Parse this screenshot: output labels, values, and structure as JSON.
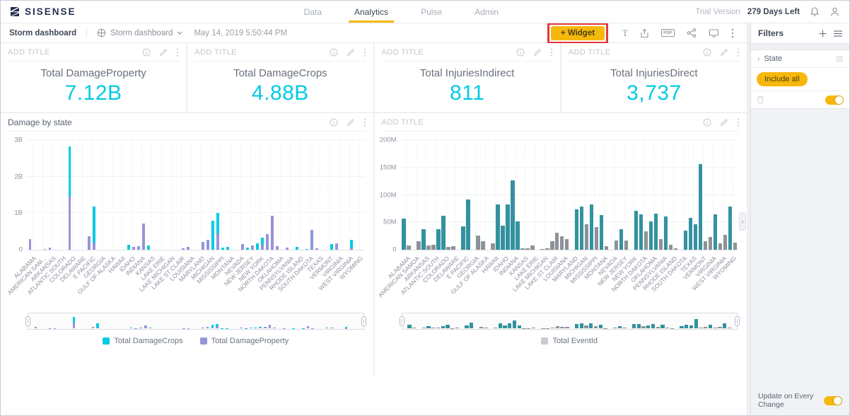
{
  "theme": {
    "accent_yellow": "#f7b80d",
    "highlight_red": "#e23a38",
    "kpi_cyan": "#00cbe4"
  },
  "navbar": {
    "logo": "SISENSE",
    "tabs": [
      {
        "label": "Data",
        "active": false
      },
      {
        "label": "Analytics",
        "active": true
      },
      {
        "label": "Pulse",
        "active": false
      },
      {
        "label": "Admin",
        "active": false
      }
    ],
    "trial_label": "Trial Version",
    "trial_days": "279 Days Left"
  },
  "toolbar": {
    "breadcrumb": "Storm dashboard",
    "selector_label": "Storm dashboard",
    "timestamp": "May 14, 2019 5:50:44 PM",
    "widget_label": "+ Widget",
    "text_icon_label": "T",
    "pdf_icon_label": "PDF"
  },
  "filters": {
    "title": "Filters",
    "items": [
      {
        "name": "State",
        "value": "Include all"
      }
    ],
    "update_label": "Update on Every Change"
  },
  "kpis": [
    {
      "header": "ADD TITLE",
      "label": "Total DamageProperty",
      "value": "7.12B"
    },
    {
      "header": "ADD TITLE",
      "label": "Total DamageCrops",
      "value": "4.88B"
    },
    {
      "header": "ADD TITLE",
      "label": "Total InjuriesIndirect",
      "value": "811"
    },
    {
      "header": "ADD TITLE",
      "label": "Total InjuriesDirect",
      "value": "3,737"
    }
  ],
  "chart_data": [
    {
      "type": "bar",
      "stacked": true,
      "title": "Damage by state",
      "placeholder_title": "",
      "unit": "B",
      "ylim": [
        0,
        3
      ],
      "slots": 68,
      "bar_width": 0.55,
      "grid": true,
      "legend_position": "bottom",
      "y_ticks": [
        {
          "label": "3B",
          "value": 3
        },
        {
          "label": "2B",
          "value": 2
        },
        {
          "label": "1B",
          "value": 1
        },
        {
          "label": "0",
          "value": 0
        }
      ],
      "categories": [
        "ALABAMA",
        "AMERICAN SAM...",
        "ARKANSAS",
        "ATLANTIC SOUTH",
        "COLORADO",
        "DELAWARE",
        "E PACIFIC",
        "GEORGIA",
        "GULF OF ALASKA",
        "HAWAII",
        "IDAHO",
        "INDIANA",
        "KANSAS",
        "LAKE ERIE",
        "LAKE MICHIGAN",
        "LAKE ST CLAIR",
        "LOUISIANA",
        "MARYLAND",
        "MICHIGAN",
        "MISSISSIPPI",
        "MONTANA",
        "NEVADA",
        "NEW JERSEY",
        "NEW YORK",
        "NORTH DAKOTA",
        "OKLAHOMA",
        "PENNSYLVANIA",
        "RHODE ISLAND",
        "SOUTH DAKOTA",
        "TEXAS",
        "VERMONT",
        "VIRGINIA",
        "WEST VIRGINIA",
        "WYOMING"
      ],
      "series": [
        {
          "name": "Total DamageProperty",
          "color": "#9595d8",
          "values": [
            0.3,
            0,
            0,
            0.02,
            0.06,
            0,
            0,
            0,
            1.45,
            0,
            0,
            0,
            0.37,
            0.2,
            0,
            0,
            0,
            0,
            0,
            0,
            0,
            0.07,
            0.1,
            0.72,
            0,
            0,
            0,
            0,
            0,
            0,
            0,
            0.03,
            0.08,
            0,
            0,
            0.22,
            0.28,
            0,
            0.45,
            0,
            0,
            0,
            0,
            0.15,
            0,
            0.12,
            0,
            0.15,
            0.43,
            0.92,
            0.1,
            0,
            0.05,
            0,
            0,
            0,
            0,
            0.55,
            0.03,
            0,
            0,
            0,
            0.17,
            0,
            0,
            0.05,
            0,
            0
          ]
        },
        {
          "name": "Total DamageCrops",
          "color": "#00cbe4",
          "values": [
            0,
            0,
            0,
            0,
            0,
            0,
            0,
            0,
            1.38,
            0,
            0,
            0,
            0,
            0.99,
            0,
            0,
            0,
            0,
            0,
            0,
            0.13,
            0,
            0,
            0,
            0.12,
            0,
            0,
            0,
            0,
            0,
            0,
            0,
            0,
            0,
            0,
            0,
            0,
            0.8,
            0.55,
            0.05,
            0.08,
            0,
            0,
            0,
            0.05,
            0,
            0.18,
            0.18,
            0,
            0,
            0,
            0,
            0,
            0,
            0.07,
            0,
            0.02,
            0,
            0,
            0,
            0,
            0.15,
            0,
            0,
            0,
            0.23,
            0,
            0
          ]
        }
      ],
      "legend": [
        {
          "label": "Total DamageCrops",
          "color": "#00cbe4"
        },
        {
          "label": "Total DamageProperty",
          "color": "#9595d8"
        }
      ]
    },
    {
      "type": "bar",
      "stacked": false,
      "title": "",
      "placeholder_title": "ADD TITLE",
      "unit": "M",
      "ylim": [
        0,
        200
      ],
      "slots": 68,
      "bar_width": 0.78,
      "grid": true,
      "legend_position": "bottom",
      "y_ticks": [
        {
          "label": "200M",
          "value": 200
        },
        {
          "label": "150M",
          "value": 150
        },
        {
          "label": "100M",
          "value": 100
        },
        {
          "label": "50M",
          "value": 50
        },
        {
          "label": "0",
          "value": 0
        }
      ],
      "categories": [
        "ALABAMA",
        "AMERICAN SAMOA",
        "ARKANSAS",
        "ATLANTIC SOUTH",
        "COLORADO",
        "DELAWARE",
        "E PACIFIC",
        "GEORGIA",
        "GULF OF ALASKA",
        "HAWAII",
        "IDAHO",
        "INDIANA",
        "KANSAS",
        "LAKE ERIE",
        "LAKE MICHIGAN",
        "LAKE ST CLAIR",
        "LOUISIANA",
        "MARYLAND",
        "MICHIGAN",
        "MISSISSIPPI",
        "MONTANA",
        "NEVADA",
        "NEW JERSEY",
        "NEW YORK",
        "NORTH DAKOTA",
        "OKLAHOMA",
        "PENNSYLVANIA",
        "RHODE ISLAND",
        "SOUTH DAKOTA",
        "TEXAS",
        "VERMONT",
        "VIRGINIA",
        "WEST VIRGINIA",
        "WYOMING"
      ],
      "series": [
        {
          "name": "Total EventId",
          "color": "#8e9298",
          "highlight_color": "#33929f",
          "values": [
            57,
            8,
            0,
            15,
            37,
            8,
            9,
            38,
            62,
            5,
            7,
            0,
            43,
            92,
            0,
            26,
            15,
            0,
            11,
            83,
            44,
            83,
            127,
            52,
            2,
            3,
            8,
            0,
            1,
            2,
            16,
            31,
            25,
            19,
            0,
            74,
            79,
            47,
            83,
            41,
            63,
            6,
            0,
            17,
            38,
            17,
            0,
            71,
            65,
            34,
            51,
            66,
            19,
            61,
            9,
            2,
            0,
            35,
            58,
            46,
            156,
            16,
            23,
            64,
            11,
            27,
            79,
            13
          ],
          "highlight": [
            1,
            0,
            0,
            0,
            1,
            0,
            0,
            1,
            1,
            0,
            0,
            0,
            1,
            1,
            0,
            0,
            0,
            0,
            0,
            1,
            1,
            1,
            1,
            1,
            0,
            0,
            0,
            0,
            0,
            0,
            0,
            0,
            0,
            0,
            0,
            1,
            1,
            0,
            1,
            0,
            1,
            0,
            0,
            0,
            1,
            0,
            0,
            1,
            1,
            0,
            1,
            1,
            0,
            1,
            0,
            0,
            0,
            1,
            1,
            1,
            1,
            0,
            0,
            1,
            0,
            0,
            1,
            0
          ]
        }
      ],
      "legend": [
        {
          "label": "Total EventId",
          "color": "#c9ccd1"
        }
      ]
    }
  ]
}
